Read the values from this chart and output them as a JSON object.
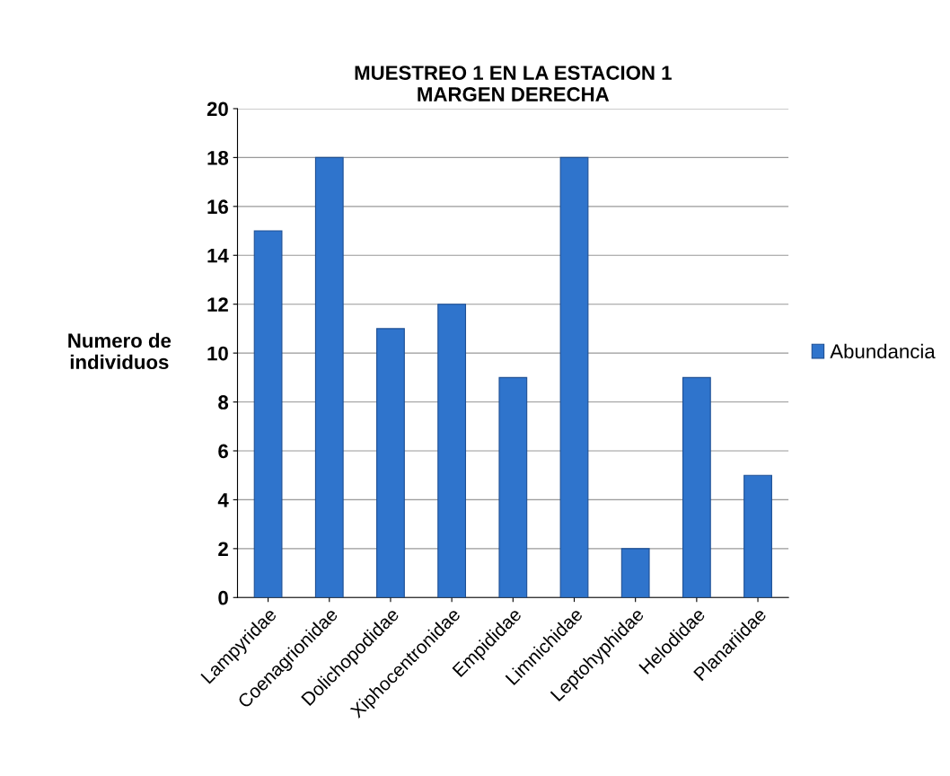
{
  "chart_data": {
    "type": "bar",
    "title": "MUESTREO 1 EN LA ESTACION 1\nMARGEN DERECHA",
    "ylabel": "Numero de\nindividuos",
    "categories": [
      "Lampyridae",
      "Coenagrionidae",
      "Dolichopodidae",
      "Xiphocentronidae",
      "Empididae",
      "Limnichidae",
      "Leptohyphidae",
      "Helodidae",
      "Planariidae"
    ],
    "series": [
      {
        "name": "Abundancia",
        "color": "#2f74cc",
        "values": [
          15,
          18,
          11,
          12,
          9,
          18,
          2,
          9,
          5
        ]
      }
    ],
    "ylim": [
      0,
      20
    ],
    "yticks": [
      0,
      2,
      4,
      6,
      8,
      10,
      12,
      14,
      16,
      18,
      20
    ],
    "grid": "y",
    "legend": "right"
  }
}
